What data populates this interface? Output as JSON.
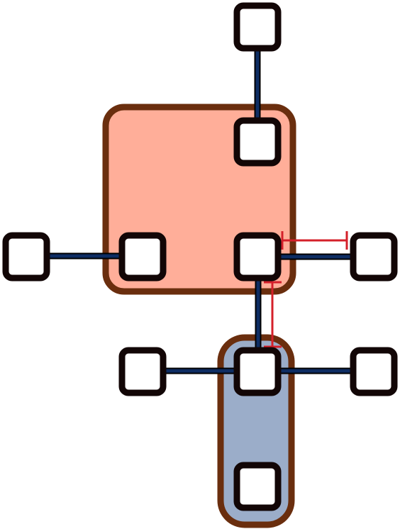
{
  "diagram": {
    "colors": {
      "background": "#ffffff",
      "group_fill_primary": "#FFAE99",
      "group_fill_secondary": "#9BADC9",
      "group_border": "#6A2E0E",
      "node_fill": "#ffffff",
      "node_border": "#120606",
      "edge": "#0E2D63",
      "edge_border": "#000000",
      "dimension_marker": "#D4202A"
    },
    "groups": [
      {
        "id": "group-primary",
        "fill": "group_fill_primary"
      },
      {
        "id": "group-secondary",
        "fill": "group_fill_secondary"
      }
    ],
    "nodes": [
      {
        "id": "top"
      },
      {
        "id": "primary-top-right"
      },
      {
        "id": "far-left"
      },
      {
        "id": "primary-left"
      },
      {
        "id": "primary-right"
      },
      {
        "id": "far-right"
      },
      {
        "id": "lower-left"
      },
      {
        "id": "secondary-top"
      },
      {
        "id": "lower-right"
      },
      {
        "id": "secondary-bottom"
      }
    ],
    "edges": [
      {
        "from": "top",
        "to": "primary-top-right"
      },
      {
        "from": "far-left",
        "to": "primary-left"
      },
      {
        "from": "primary-right",
        "to": "far-right"
      },
      {
        "from": "primary-right",
        "to": "secondary-top"
      },
      {
        "from": "lower-left",
        "to": "secondary-top"
      },
      {
        "from": "secondary-top",
        "to": "lower-right"
      }
    ],
    "dimension_markers": [
      {
        "id": "horizontal-gap",
        "orientation": "horizontal"
      },
      {
        "id": "vertical-gap",
        "orientation": "vertical"
      }
    ]
  }
}
